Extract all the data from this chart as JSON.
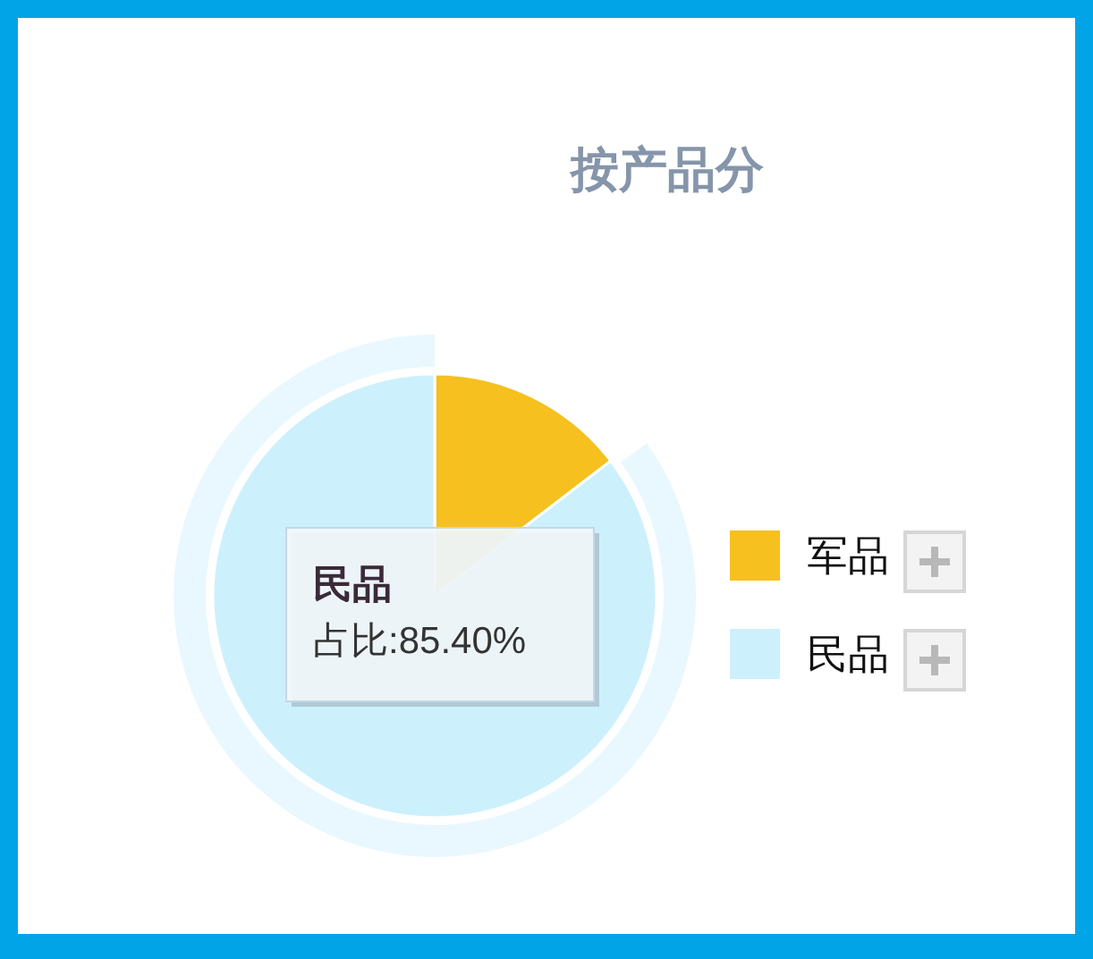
{
  "chart_data": {
    "type": "pie",
    "title": "按产品分",
    "categories": [
      "军品",
      "民品"
    ],
    "values": [
      14.6,
      85.4
    ],
    "colors": [
      "#f6c01e",
      "#cdf0fd"
    ],
    "legend": "right",
    "annotations": [
      "民品",
      "占比:85.40%"
    ]
  }
}
